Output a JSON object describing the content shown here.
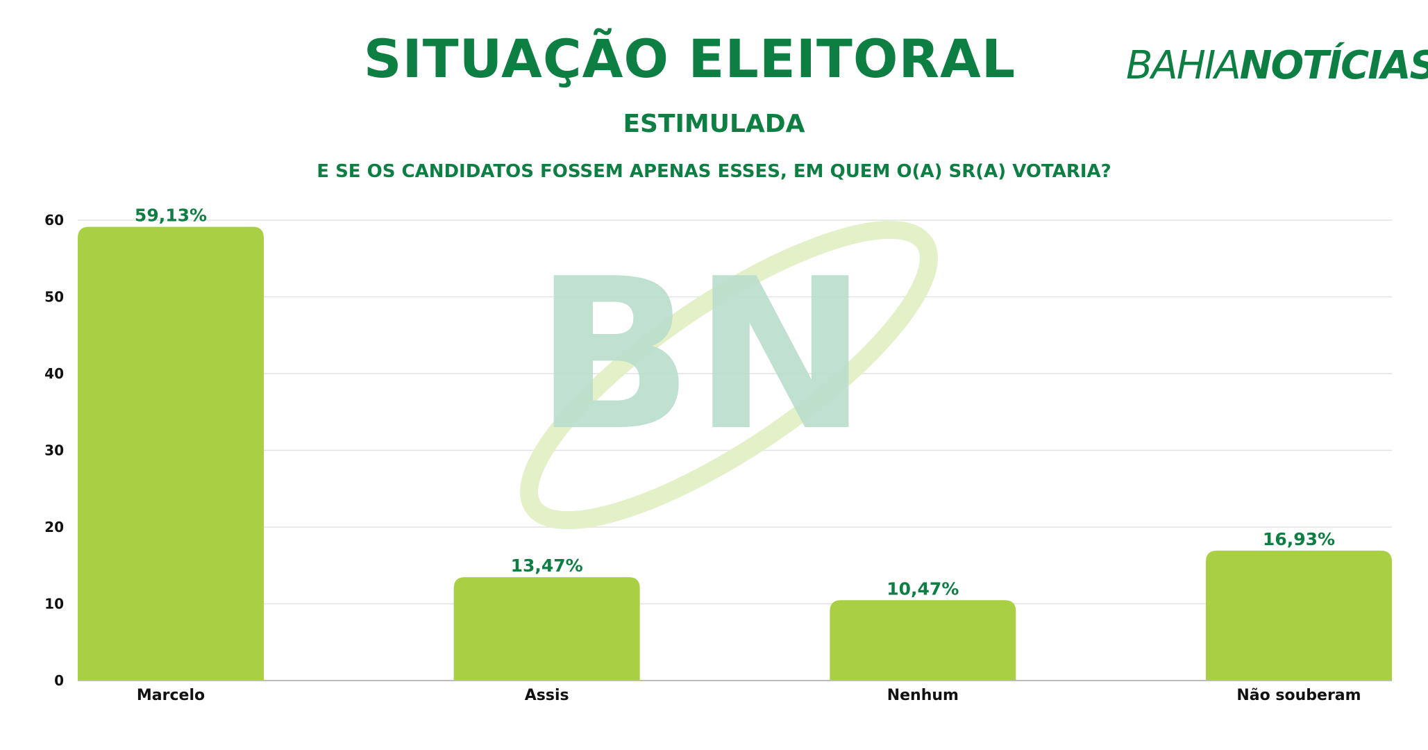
{
  "header": {
    "title": "SITUAÇÃO ELEITORAL",
    "subtitle": "ESTIMULADA",
    "question": "E SE OS CANDIDATOS FOSSEM APENAS ESSES, EM QUEM O(A) SR(A) VOTARIA?",
    "logo_part1": "BAHIA",
    "logo_part2": "NOTÍCIAS",
    "watermark": "BN"
  },
  "colors": {
    "brand": "#0d7f43",
    "bar": "#a9d045",
    "watermark": "#b9ddcc",
    "swoosh": "#e4f1c8"
  },
  "chart_data": {
    "type": "bar",
    "categories": [
      "Marcelo",
      "Assis",
      "Nenhum",
      "Não souberam"
    ],
    "values": [
      59.13,
      13.47,
      10.47,
      16.93
    ],
    "data_labels": [
      "59,13%",
      "13,47%",
      "10,47%",
      "16,93%"
    ],
    "title": "SITUAÇÃO ELEITORAL",
    "subtitle": "ESTIMULADA",
    "xlabel": "",
    "ylabel": "",
    "ylim": [
      0,
      60
    ],
    "yticks": [
      0,
      10,
      20,
      30,
      40,
      50,
      60
    ],
    "grid": true,
    "legend": "none"
  }
}
